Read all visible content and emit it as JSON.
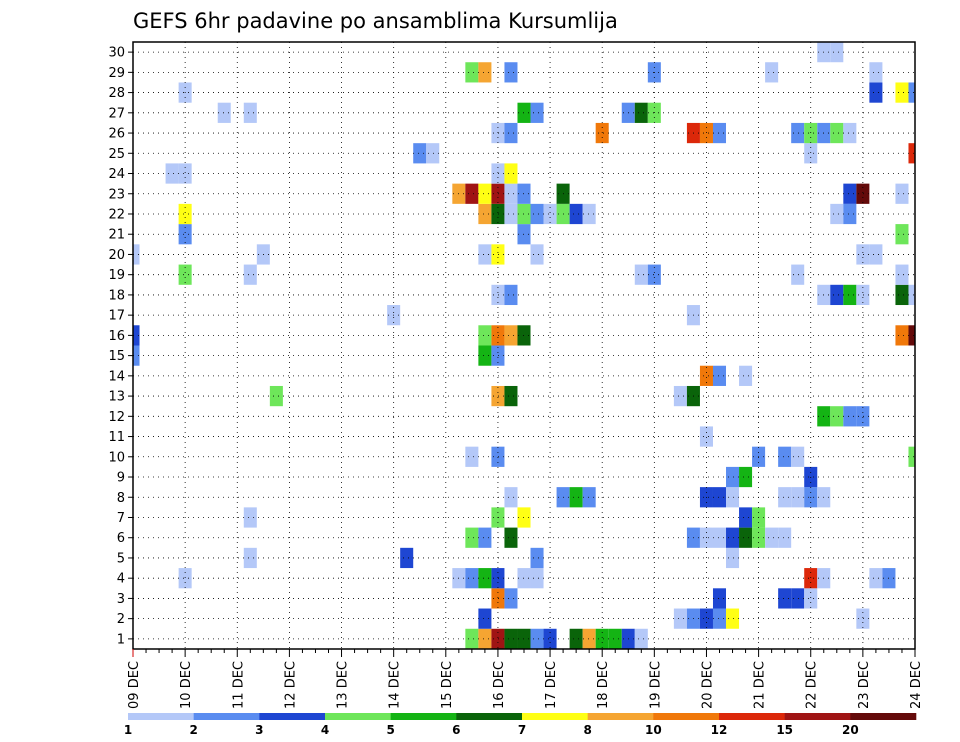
{
  "chart_data": {
    "type": "heatmap",
    "title": "GEFS 6hr padavine po ansamblima Kursumlija",
    "x_ticks": [
      "09 DEC",
      "10 DEC",
      "11 DEC",
      "12 DEC",
      "13 DEC",
      "14 DEC",
      "15 DEC",
      "16 DEC",
      "17 DEC",
      "18 DEC",
      "19 DEC",
      "20 DEC",
      "21 DEC",
      "22 DEC",
      "23 DEC",
      "24 DEC"
    ],
    "y_ticks": [
      "1",
      "2",
      "3",
      "4",
      "5",
      "6",
      "7",
      "8",
      "9",
      "10",
      "11",
      "12",
      "13",
      "14",
      "15",
      "16",
      "17",
      "18",
      "19",
      "20",
      "21",
      "22",
      "23",
      "24",
      "25",
      "26",
      "27",
      "28",
      "29",
      "30"
    ],
    "xlim_steps": [
      0,
      60
    ],
    "ylim": [
      0.5,
      30.5
    ],
    "grid": true,
    "colorbar": {
      "labels": [
        "1",
        "2",
        "3",
        "4",
        "5",
        "6",
        "7",
        "8",
        "10",
        "12",
        "15",
        "20"
      ],
      "colors": [
        "#b4c8f8",
        "#5a8cf0",
        "#1e46d2",
        "#6ee65a",
        "#14b414",
        "#0a640a",
        "#ffff14",
        "#f5a532",
        "#f0780a",
        "#dc280a",
        "#a01414",
        "#640a0a"
      ]
    },
    "cells_format": "[time_step (6h steps from 09 DEC 00z), member, color_class (1-12)]",
    "cells": [
      [
        40,
        29,
        2
      ],
      [
        26,
        1,
        4
      ],
      [
        27,
        1,
        8
      ],
      [
        28,
        1,
        11
      ],
      [
        29,
        1,
        6
      ],
      [
        30,
        1,
        6
      ],
      [
        31,
        1,
        2
      ],
      [
        32,
        1,
        3
      ],
      [
        34,
        1,
        6
      ],
      [
        35,
        1,
        8
      ],
      [
        36,
        1,
        5
      ],
      [
        37,
        1,
        5
      ],
      [
        38,
        1,
        3
      ],
      [
        39,
        1,
        1
      ],
      [
        27,
        2,
        3
      ],
      [
        42,
        2,
        1
      ],
      [
        43,
        2,
        2
      ],
      [
        44,
        2,
        3
      ],
      [
        45,
        2,
        2
      ],
      [
        46,
        2,
        7
      ],
      [
        56,
        2,
        1
      ],
      [
        28,
        3,
        9
      ],
      [
        29,
        3,
        2
      ],
      [
        45,
        3,
        3
      ],
      [
        50,
        3,
        3
      ],
      [
        51,
        3,
        3
      ],
      [
        52,
        3,
        1
      ],
      [
        4,
        4,
        1
      ],
      [
        25,
        4,
        1
      ],
      [
        26,
        4,
        2
      ],
      [
        27,
        4,
        5
      ],
      [
        28,
        4,
        3
      ],
      [
        30,
        4,
        1
      ],
      [
        31,
        4,
        1
      ],
      [
        52,
        4,
        10
      ],
      [
        53,
        4,
        1
      ],
      [
        57,
        4,
        1
      ],
      [
        58,
        4,
        2
      ],
      [
        9,
        5,
        1
      ],
      [
        21,
        5,
        3
      ],
      [
        31,
        5,
        2
      ],
      [
        46,
        5,
        1
      ],
      [
        26,
        6,
        4
      ],
      [
        27,
        6,
        2
      ],
      [
        29,
        6,
        6
      ],
      [
        43,
        6,
        2
      ],
      [
        44,
        6,
        1
      ],
      [
        45,
        6,
        1
      ],
      [
        46,
        6,
        3
      ],
      [
        47,
        6,
        6
      ],
      [
        48,
        6,
        4
      ],
      [
        49,
        6,
        1
      ],
      [
        50,
        6,
        1
      ],
      [
        9,
        7,
        1
      ],
      [
        28,
        7,
        4
      ],
      [
        30,
        7,
        7
      ],
      [
        47,
        7,
        3
      ],
      [
        48,
        7,
        4
      ],
      [
        29,
        8,
        1
      ],
      [
        33,
        8,
        2
      ],
      [
        34,
        8,
        5
      ],
      [
        35,
        8,
        2
      ],
      [
        44,
        8,
        3
      ],
      [
        45,
        8,
        3
      ],
      [
        46,
        8,
        1
      ],
      [
        50,
        8,
        1
      ],
      [
        51,
        8,
        1
      ],
      [
        52,
        8,
        2
      ],
      [
        53,
        8,
        1
      ],
      [
        46,
        9,
        2
      ],
      [
        47,
        9,
        5
      ],
      [
        52,
        9,
        3
      ],
      [
        26,
        10,
        1
      ],
      [
        28,
        10,
        2
      ],
      [
        48,
        10,
        2
      ],
      [
        50,
        10,
        2
      ],
      [
        51,
        10,
        1
      ],
      [
        60,
        10,
        4
      ],
      [
        44,
        11,
        1
      ],
      [
        53,
        12,
        5
      ],
      [
        54,
        12,
        4
      ],
      [
        55,
        12,
        2
      ],
      [
        56,
        12,
        2
      ],
      [
        11,
        13,
        4
      ],
      [
        28,
        13,
        8
      ],
      [
        29,
        13,
        6
      ],
      [
        42,
        13,
        1
      ],
      [
        43,
        13,
        6
      ],
      [
        44,
        14,
        9
      ],
      [
        45,
        14,
        2
      ],
      [
        47,
        14,
        1
      ],
      [
        0,
        15,
        2
      ],
      [
        27,
        15,
        5
      ],
      [
        28,
        15,
        2
      ],
      [
        0,
        16,
        3
      ],
      [
        27,
        16,
        4
      ],
      [
        28,
        16,
        9
      ],
      [
        29,
        16,
        8
      ],
      [
        30,
        16,
        6
      ],
      [
        59,
        16,
        9
      ],
      [
        60,
        16,
        12
      ],
      [
        20,
        17,
        1
      ],
      [
        43,
        17,
        1
      ],
      [
        28,
        18,
        1
      ],
      [
        29,
        18,
        2
      ],
      [
        53,
        18,
        1
      ],
      [
        54,
        18,
        3
      ],
      [
        55,
        18,
        5
      ],
      [
        56,
        18,
        1
      ],
      [
        59,
        18,
        6
      ],
      [
        60,
        18,
        1
      ],
      [
        4,
        19,
        4
      ],
      [
        9,
        19,
        1
      ],
      [
        39,
        19,
        1
      ],
      [
        40,
        19,
        2
      ],
      [
        51,
        19,
        1
      ],
      [
        59,
        19,
        1
      ],
      [
        0,
        20,
        1
      ],
      [
        10,
        20,
        1
      ],
      [
        27,
        20,
        1
      ],
      [
        28,
        20,
        7
      ],
      [
        31,
        20,
        1
      ],
      [
        56,
        20,
        1
      ],
      [
        57,
        20,
        1
      ],
      [
        4,
        21,
        2
      ],
      [
        30,
        21,
        2
      ],
      [
        59,
        21,
        4
      ],
      [
        4,
        22,
        7
      ],
      [
        27,
        22,
        8
      ],
      [
        28,
        22,
        6
      ],
      [
        29,
        22,
        1
      ],
      [
        30,
        22,
        4
      ],
      [
        31,
        22,
        2
      ],
      [
        32,
        22,
        1
      ],
      [
        33,
        22,
        4
      ],
      [
        34,
        22,
        3
      ],
      [
        35,
        22,
        1
      ],
      [
        54,
        22,
        1
      ],
      [
        55,
        22,
        2
      ],
      [
        25,
        23,
        8
      ],
      [
        26,
        23,
        11
      ],
      [
        27,
        23,
        7
      ],
      [
        28,
        23,
        11
      ],
      [
        29,
        23,
        1
      ],
      [
        30,
        23,
        2
      ],
      [
        33,
        23,
        6
      ],
      [
        55,
        23,
        3
      ],
      [
        56,
        23,
        12
      ],
      [
        59,
        23,
        1
      ],
      [
        3,
        24,
        1
      ],
      [
        4,
        24,
        1
      ],
      [
        28,
        24,
        1
      ],
      [
        29,
        24,
        7
      ],
      [
        22,
        25,
        2
      ],
      [
        23,
        25,
        1
      ],
      [
        52,
        25,
        1
      ],
      [
        60,
        25,
        10
      ],
      [
        28,
        26,
        1
      ],
      [
        29,
        26,
        2
      ],
      [
        36,
        26,
        9
      ],
      [
        43,
        26,
        10
      ],
      [
        44,
        26,
        9
      ],
      [
        45,
        26,
        2
      ],
      [
        51,
        26,
        2
      ],
      [
        52,
        26,
        4
      ],
      [
        53,
        26,
        2
      ],
      [
        54,
        26,
        4
      ],
      [
        55,
        26,
        1
      ],
      [
        7,
        27,
        1
      ],
      [
        9,
        27,
        1
      ],
      [
        30,
        27,
        5
      ],
      [
        31,
        27,
        2
      ],
      [
        38,
        27,
        2
      ],
      [
        39,
        27,
        6
      ],
      [
        40,
        27,
        4
      ],
      [
        4,
        28,
        1
      ],
      [
        57,
        28,
        3
      ],
      [
        59,
        28,
        7
      ],
      [
        60,
        28,
        2
      ],
      [
        26,
        29,
        4
      ],
      [
        27,
        29,
        8
      ],
      [
        29,
        29,
        2
      ],
      [
        49,
        29,
        1
      ],
      [
        57,
        29,
        1
      ],
      [
        53,
        30,
        1
      ],
      [
        54,
        30,
        1
      ]
    ]
  }
}
